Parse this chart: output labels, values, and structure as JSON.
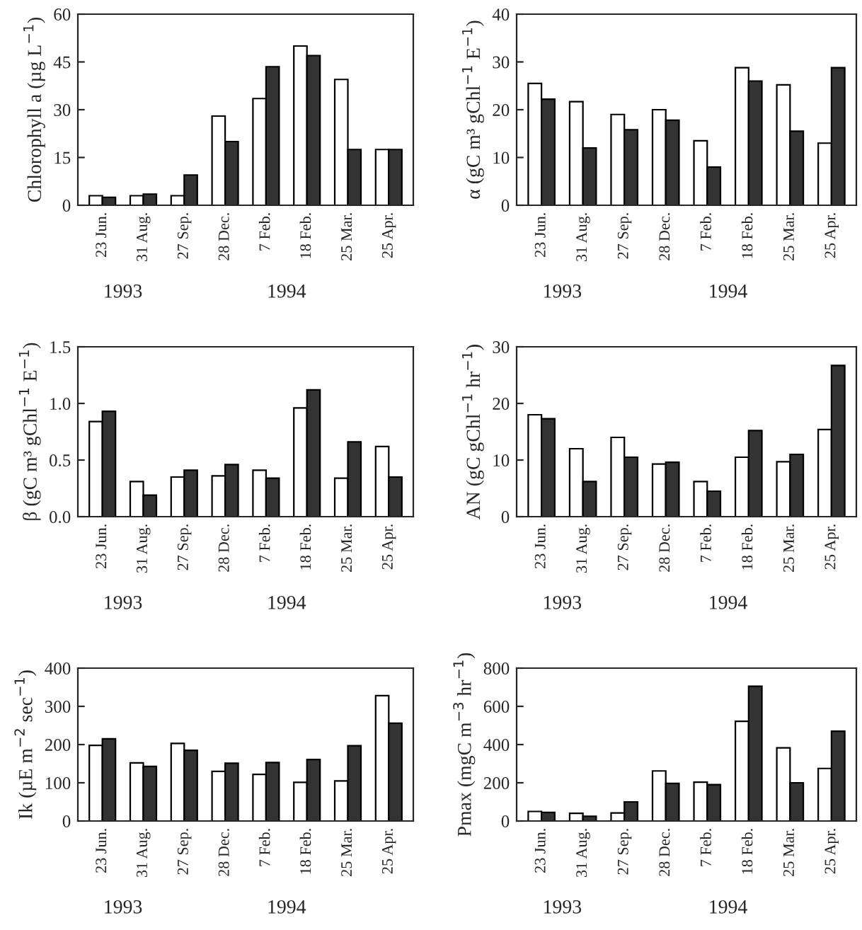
{
  "chart_data": [
    {
      "type": "bar",
      "ylabel": "Chlorophyll a (µg L$^{−1}$)",
      "categories": [
        "23 Jun.",
        "31 Aug.",
        "27 Sep.",
        "28 Dec.",
        "7 Feb.",
        "18 Feb.",
        "25 Mar.",
        "25 Apr."
      ],
      "ylim": [
        0,
        60
      ],
      "yticks": [
        0,
        15,
        30,
        45,
        60
      ],
      "grid": false,
      "annotations": [
        "1993",
        "1994"
      ],
      "series": [
        {
          "color": "#ffffff",
          "values": [
            3,
            3,
            3,
            28,
            33.5,
            50,
            39.5,
            17.5
          ]
        },
        {
          "color": "#333333",
          "values": [
            2.5,
            3.5,
            9.5,
            20,
            43.5,
            47,
            17.5,
            17.5
          ]
        }
      ]
    },
    {
      "type": "bar",
      "ylabel": "α (gC m³ gChl$^{−1}$ E$^{−1}$)",
      "categories": [
        "23 Jun.",
        "31 Aug.",
        "27 Sep.",
        "28 Dec.",
        "7 Feb.",
        "18 Feb.",
        "25 Mar.",
        "25 Apr."
      ],
      "ylim": [
        0,
        40
      ],
      "yticks": [
        0,
        10,
        20,
        30,
        40
      ],
      "grid": false,
      "annotations": [
        "1993",
        "1994"
      ],
      "series": [
        {
          "color": "#ffffff",
          "values": [
            25.5,
            21.7,
            19,
            20,
            13.5,
            28.8,
            25.2,
            13
          ]
        },
        {
          "color": "#333333",
          "values": [
            22.2,
            12,
            15.8,
            17.8,
            8,
            26,
            15.5,
            28.8
          ]
        }
      ]
    },
    {
      "type": "bar",
      "ylabel": "β (gC m³ gChl$^{−1}$ E$^{−1}$)",
      "categories": [
        "23 Jun.",
        "31 Aug.",
        "27 Sep.",
        "28 Dec.",
        "7 Feb.",
        "18 Feb.",
        "25 Mar.",
        "25 Apr."
      ],
      "ylim": [
        0,
        1.5
      ],
      "yticks": [
        {
          "value": 0,
          "label": "0.0"
        },
        0.5,
        {
          "value": 1,
          "label": "1.0"
        },
        1.5
      ],
      "grid": false,
      "annotations": [
        "1993",
        "1994"
      ],
      "series": [
        {
          "color": "#ffffff",
          "values": [
            0.84,
            0.31,
            0.35,
            0.36,
            0.41,
            0.96,
            0.34,
            0.62
          ]
        },
        {
          "color": "#333333",
          "values": [
            0.93,
            0.19,
            0.41,
            0.46,
            0.34,
            1.12,
            0.66,
            0.35
          ]
        }
      ]
    },
    {
      "type": "bar",
      "ylabel": "AN (gC gChl$^{−1}$ hr$^{−1}$)",
      "categories": [
        "23 Jun.",
        "31 Aug.",
        "27 Sep.",
        "28 Dec.",
        "7 Feb.",
        "18 Feb.",
        "25 Mar.",
        "25 Apr."
      ],
      "ylim": [
        0,
        30
      ],
      "yticks": [
        0,
        10,
        20,
        30
      ],
      "grid": false,
      "annotations": [
        "1993",
        "1994"
      ],
      "series": [
        {
          "color": "#ffffff",
          "values": [
            18,
            12,
            14,
            9.3,
            6.2,
            10.5,
            9.7,
            15.4
          ]
        },
        {
          "color": "#333333",
          "values": [
            17.3,
            6.2,
            10.5,
            9.6,
            4.5,
            15.2,
            11,
            26.7
          ]
        }
      ]
    },
    {
      "type": "bar",
      "ylabel": "Ik (µE m$^{−2}$ sec$^{−1}$)",
      "categories": [
        "23 Jun.",
        "31 Aug.",
        "27 Sep.",
        "28 Dec.",
        "7 Feb.",
        "18 Feb.",
        "25 Mar.",
        "25 Apr."
      ],
      "ylim": [
        0,
        400
      ],
      "yticks": [
        0,
        100,
        200,
        300,
        400
      ],
      "grid": false,
      "annotations": [
        "1993",
        "1994"
      ],
      "series": [
        {
          "color": "#ffffff",
          "values": [
            198,
            152,
            203,
            130,
            122,
            101,
            105,
            328
          ]
        },
        {
          "color": "#333333",
          "values": [
            215,
            143,
            185,
            151,
            153,
            161,
            197,
            256
          ]
        }
      ]
    },
    {
      "type": "bar",
      "ylabel": "Pmax (mgC m$^{−3}$ hr$^{−1}$)",
      "categories": [
        "23 Jun.",
        "31 Aug.",
        "27 Sep.",
        "28 Dec.",
        "7 Feb.",
        "18 Feb.",
        "25 Mar.",
        "25 Apr."
      ],
      "ylim": [
        0,
        800
      ],
      "yticks": [
        0,
        200,
        400,
        600,
        800
      ],
      "grid": false,
      "annotations": [
        "1993",
        "1994"
      ],
      "series": [
        {
          "color": "#ffffff",
          "values": [
            50,
            40,
            42,
            262,
            203,
            522,
            383,
            275
          ]
        },
        {
          "color": "#333333",
          "values": [
            45,
            25,
            100,
            197,
            190,
            705,
            200,
            470
          ]
        }
      ]
    }
  ]
}
